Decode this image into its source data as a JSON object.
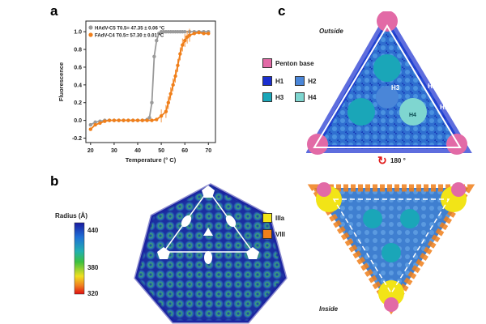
{
  "panels": {
    "a": {
      "letter": "a"
    },
    "b": {
      "letter": "b"
    },
    "c": {
      "letter": "c"
    }
  },
  "chart_data": {
    "type": "line",
    "title": "",
    "xlabel": "Temperature (° C)",
    "ylabel": "Fluorescence",
    "xlim": [
      18,
      73
    ],
    "ylim": [
      -0.25,
      1.12
    ],
    "xticks": [
      20,
      30,
      40,
      50,
      60,
      70
    ],
    "yticks": [
      -0.2,
      0.0,
      0.2,
      0.4,
      0.6,
      0.8,
      1.0
    ],
    "xtick_labels": [
      "20",
      "30",
      "40",
      "50",
      "60",
      "70"
    ],
    "ytick_labels": [
      "-0.2",
      "0.0",
      "0.2",
      "0.4",
      "0.6",
      "0.8",
      "1.0"
    ],
    "series": [
      {
        "name": "HAdV-C5",
        "legend_label": "HAdV-C5  T0.5= 47.35 ± 0.06 °C",
        "color": "#9a9a9a",
        "x": [
          20,
          22,
          24,
          26,
          28,
          30,
          32,
          34,
          36,
          38,
          40,
          42,
          44,
          45,
          46,
          47,
          48,
          49,
          50,
          51,
          52,
          53,
          54,
          55,
          56,
          57,
          58,
          59,
          60,
          62,
          64,
          66,
          68,
          70
        ],
        "y": [
          -0.05,
          -0.02,
          -0.01,
          0,
          0,
          0,
          0,
          0,
          0,
          0,
          0,
          0,
          0.01,
          0.03,
          0.2,
          0.72,
          0.9,
          0.98,
          1.0,
          1.0,
          1.0,
          1.0,
          1.0,
          1.0,
          1.0,
          1.0,
          1.0,
          1.0,
          1.0,
          1.0,
          1.0,
          1.0,
          1.0,
          1.0
        ]
      },
      {
        "name": "FAdV-C4",
        "legend_label": "FAdV-C4  T0.5= 57.30 ± 0.01 °C",
        "color": "#f07f1a",
        "x": [
          20,
          22,
          24,
          26,
          28,
          30,
          32,
          34,
          36,
          38,
          40,
          42,
          44,
          46,
          48,
          50,
          52,
          53,
          54,
          55,
          56,
          57,
          58,
          59,
          60,
          61,
          62,
          64,
          66,
          68,
          70
        ],
        "y": [
          -0.1,
          -0.05,
          -0.03,
          -0.01,
          0,
          0,
          0,
          0,
          0,
          0,
          0,
          0,
          0,
          0,
          0.01,
          0.05,
          0.1,
          0.2,
          0.3,
          0.4,
          0.5,
          0.62,
          0.75,
          0.85,
          0.9,
          0.94,
          0.96,
          0.98,
          0.99,
          0.98,
          0.98
        ]
      }
    ]
  },
  "colorbar": {
    "title": "Radius (Å)",
    "ticks": [
      "440",
      "380",
      "320"
    ]
  },
  "protein_legend": {
    "items": [
      {
        "label": "Penton base",
        "color": "#e26aa6"
      },
      {
        "label": "H1",
        "color": "#1a2fd0"
      },
      {
        "label": "H2",
        "color": "#4a86d8"
      },
      {
        "label": "H3",
        "color": "#1aa6b8"
      },
      {
        "label": "H4",
        "color": "#7fd6d0"
      },
      {
        "label": "IIIa",
        "color": "#f2e417"
      },
      {
        "label": "VIII",
        "color": "#f07f1a"
      }
    ]
  },
  "structure_labels": {
    "outside": "Outside",
    "inside": "Inside",
    "rotation": "180 °",
    "h3": "H3",
    "h2": "H2",
    "h1": "H1",
    "h4": "H4"
  }
}
